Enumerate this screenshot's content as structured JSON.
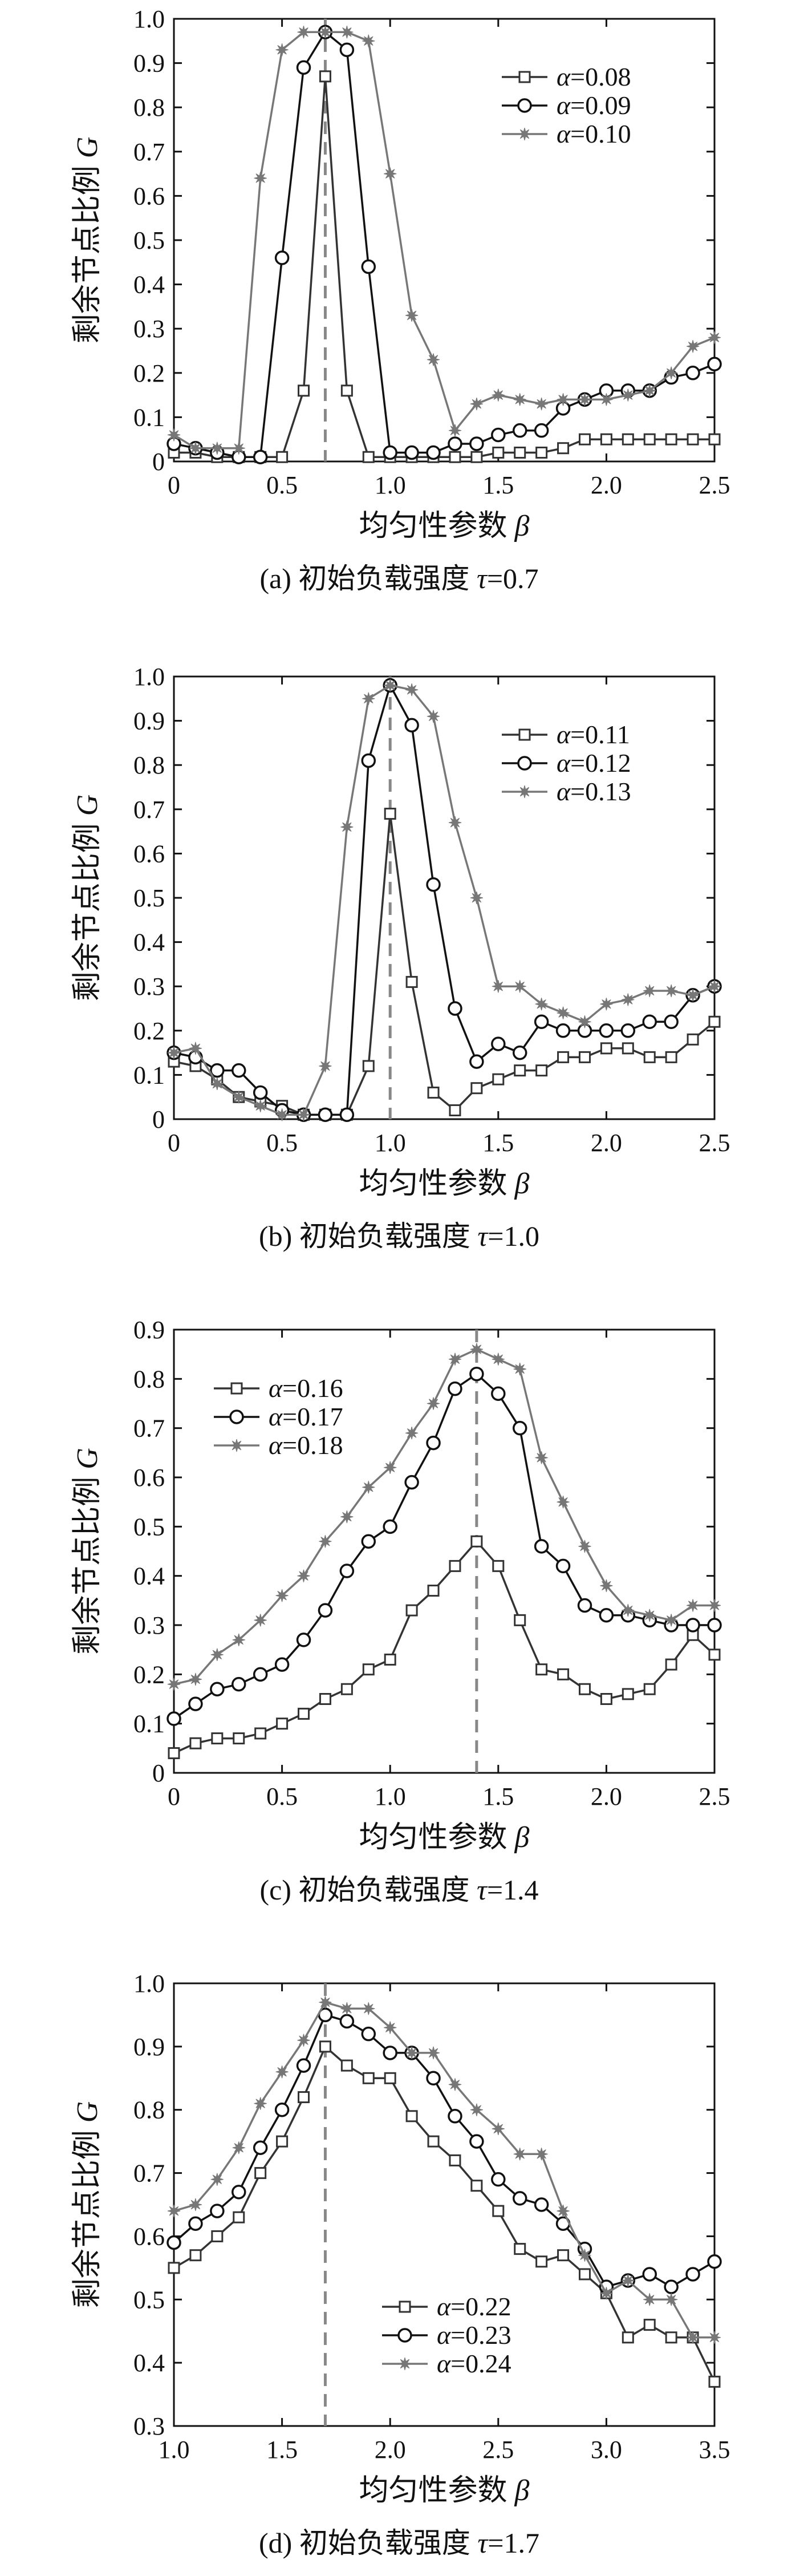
{
  "chart_data": [
    {
      "type": "line",
      "panel": "a",
      "caption": "(a) 初始负载强度 τ=0.7",
      "xlabel": "均匀性参数 β",
      "ylabel": "剩余节点比例 G",
      "xlim": [
        0,
        2.5
      ],
      "ylim": [
        0,
        1.0
      ],
      "xticks": [
        "0",
        "0.5",
        "1.0",
        "1.5",
        "2.0",
        "2.5"
      ],
      "xtick_values": [
        0,
        0.5,
        1.0,
        1.5,
        2.0,
        2.5
      ],
      "yticks": [
        "0",
        "0.1",
        "0.2",
        "0.3",
        "0.4",
        "0.5",
        "0.6",
        "0.7",
        "0.8",
        "0.9",
        "1.0"
      ],
      "ytick_values": [
        0,
        0.1,
        0.2,
        0.3,
        0.4,
        0.5,
        0.6,
        0.7,
        0.8,
        0.9,
        1.0
      ],
      "vline": 0.7,
      "legend_position": "top-right",
      "x": [
        0,
        0.1,
        0.2,
        0.3,
        0.4,
        0.5,
        0.6,
        0.7,
        0.8,
        0.9,
        1.0,
        1.1,
        1.2,
        1.3,
        1.4,
        1.5,
        1.6,
        1.7,
        1.8,
        1.9,
        2.0,
        2.1,
        2.2,
        2.3,
        2.4,
        2.5
      ],
      "series": [
        {
          "name": "α=0.08",
          "marker": "square",
          "color": "#333333",
          "values": [
            0.02,
            0.02,
            0.01,
            0.01,
            0.01,
            0.01,
            0.16,
            0.87,
            0.16,
            0.01,
            0.01,
            0.01,
            0.01,
            0.01,
            0.01,
            0.02,
            0.02,
            0.02,
            0.03,
            0.05,
            0.05,
            0.05,
            0.05,
            0.05,
            0.05,
            0.05
          ]
        },
        {
          "name": "α=0.09",
          "marker": "circle",
          "color": "#111111",
          "values": [
            0.04,
            0.03,
            0.02,
            0.01,
            0.01,
            0.46,
            0.89,
            0.97,
            0.93,
            0.44,
            0.02,
            0.02,
            0.02,
            0.04,
            0.04,
            0.06,
            0.07,
            0.07,
            0.12,
            0.14,
            0.16,
            0.16,
            0.16,
            0.19,
            0.2,
            0.22
          ]
        },
        {
          "name": "α=0.10",
          "marker": "star",
          "color": "#777777",
          "values": [
            0.06,
            0.03,
            0.03,
            0.03,
            0.64,
            0.93,
            0.97,
            0.97,
            0.97,
            0.95,
            0.65,
            0.33,
            0.23,
            0.07,
            0.13,
            0.15,
            0.14,
            0.13,
            0.14,
            0.14,
            0.14,
            0.15,
            0.16,
            0.2,
            0.26,
            0.28
          ]
        }
      ]
    },
    {
      "type": "line",
      "panel": "b",
      "caption": "(b) 初始负载强度 τ=1.0",
      "xlabel": "均匀性参数 β",
      "ylabel": "剩余节点比例 G",
      "xlim": [
        0,
        2.5
      ],
      "ylim": [
        0,
        1.0
      ],
      "xticks": [
        "0",
        "0.5",
        "1.0",
        "1.5",
        "2.0",
        "2.5"
      ],
      "xtick_values": [
        0,
        0.5,
        1.0,
        1.5,
        2.0,
        2.5
      ],
      "yticks": [
        "0",
        "0.1",
        "0.2",
        "0.3",
        "0.4",
        "0.5",
        "0.6",
        "0.7",
        "0.8",
        "0.9",
        "1.0"
      ],
      "ytick_values": [
        0,
        0.1,
        0.2,
        0.3,
        0.4,
        0.5,
        0.6,
        0.7,
        0.8,
        0.9,
        1.0
      ],
      "vline": 1.0,
      "legend_position": "top-right",
      "x": [
        0,
        0.1,
        0.2,
        0.3,
        0.4,
        0.5,
        0.6,
        0.7,
        0.8,
        0.9,
        1.0,
        1.1,
        1.2,
        1.3,
        1.4,
        1.5,
        1.6,
        1.7,
        1.8,
        1.9,
        2.0,
        2.1,
        2.2,
        2.3,
        2.4,
        2.5
      ],
      "series": [
        {
          "name": "α=0.11",
          "marker": "square",
          "color": "#333333",
          "values": [
            0.13,
            0.12,
            0.09,
            0.05,
            0.04,
            0.03,
            0.01,
            0.01,
            0.01,
            0.12,
            0.69,
            0.31,
            0.06,
            0.02,
            0.07,
            0.09,
            0.11,
            0.11,
            0.14,
            0.14,
            0.16,
            0.16,
            0.14,
            0.14,
            0.18,
            0.22
          ]
        },
        {
          "name": "α=0.12",
          "marker": "circle",
          "color": "#111111",
          "values": [
            0.15,
            0.14,
            0.11,
            0.11,
            0.06,
            0.02,
            0.01,
            0.01,
            0.01,
            0.81,
            0.98,
            0.89,
            0.53,
            0.25,
            0.13,
            0.17,
            0.15,
            0.22,
            0.2,
            0.2,
            0.2,
            0.2,
            0.22,
            0.22,
            0.28,
            0.3
          ]
        },
        {
          "name": "α=0.13",
          "marker": "star",
          "color": "#777777",
          "values": [
            0.15,
            0.16,
            0.08,
            0.05,
            0.03,
            0.01,
            0.01,
            0.12,
            0.66,
            0.95,
            0.98,
            0.97,
            0.91,
            0.67,
            0.5,
            0.3,
            0.3,
            0.26,
            0.24,
            0.22,
            0.26,
            0.27,
            0.29,
            0.29,
            0.28,
            0.3
          ]
        }
      ]
    },
    {
      "type": "line",
      "panel": "c",
      "caption": "(c) 初始负载强度 τ=1.4",
      "xlabel": "均匀性参数 β",
      "ylabel": "剩余节点比例 G",
      "xlim": [
        0,
        2.5
      ],
      "ylim": [
        0,
        0.9
      ],
      "xticks": [
        "0",
        "0.5",
        "1.0",
        "1.5",
        "2.0",
        "2.5"
      ],
      "xtick_values": [
        0,
        0.5,
        1.0,
        1.5,
        2.0,
        2.5
      ],
      "yticks": [
        "0",
        "0.1",
        "0.2",
        "0.3",
        "0.4",
        "0.5",
        "0.6",
        "0.7",
        "0.8",
        "0.9"
      ],
      "ytick_values": [
        0,
        0.1,
        0.2,
        0.3,
        0.4,
        0.5,
        0.6,
        0.7,
        0.8,
        0.9
      ],
      "vline": 1.4,
      "legend_position": "top-left",
      "x": [
        0,
        0.1,
        0.2,
        0.3,
        0.4,
        0.5,
        0.6,
        0.7,
        0.8,
        0.9,
        1.0,
        1.1,
        1.2,
        1.3,
        1.4,
        1.5,
        1.6,
        1.7,
        1.8,
        1.9,
        2.0,
        2.1,
        2.2,
        2.3,
        2.4,
        2.5
      ],
      "series": [
        {
          "name": "α=0.16",
          "marker": "square",
          "color": "#333333",
          "values": [
            0.04,
            0.06,
            0.07,
            0.07,
            0.08,
            0.1,
            0.12,
            0.15,
            0.17,
            0.21,
            0.23,
            0.33,
            0.37,
            0.42,
            0.47,
            0.42,
            0.31,
            0.21,
            0.2,
            0.17,
            0.15,
            0.16,
            0.17,
            0.22,
            0.28,
            0.24
          ]
        },
        {
          "name": "α=0.17",
          "marker": "circle",
          "color": "#111111",
          "values": [
            0.11,
            0.14,
            0.17,
            0.18,
            0.2,
            0.22,
            0.27,
            0.33,
            0.41,
            0.47,
            0.5,
            0.59,
            0.67,
            0.78,
            0.81,
            0.77,
            0.7,
            0.46,
            0.42,
            0.34,
            0.32,
            0.32,
            0.31,
            0.3,
            0.3,
            0.3
          ]
        },
        {
          "name": "α=0.18",
          "marker": "star",
          "color": "#777777",
          "values": [
            0.18,
            0.19,
            0.24,
            0.27,
            0.31,
            0.36,
            0.4,
            0.47,
            0.52,
            0.58,
            0.62,
            0.69,
            0.75,
            0.84,
            0.86,
            0.84,
            0.82,
            0.64,
            0.55,
            0.46,
            0.38,
            0.33,
            0.32,
            0.31,
            0.34,
            0.34
          ]
        }
      ]
    },
    {
      "type": "line",
      "panel": "d",
      "caption": "(d) 初始负载强度 τ=1.7",
      "xlabel": "均匀性参数 β",
      "ylabel": "剩余节点比例 G",
      "xlim": [
        1.0,
        3.5
      ],
      "ylim": [
        0.3,
        1.0
      ],
      "xticks": [
        "1.0",
        "1.5",
        "2.0",
        "2.5",
        "3.0",
        "3.5"
      ],
      "xtick_values": [
        1.0,
        1.5,
        2.0,
        2.5,
        3.0,
        3.5
      ],
      "yticks": [
        "0.3",
        "0.4",
        "0.5",
        "0.6",
        "0.7",
        "0.8",
        "0.9",
        "1.0"
      ],
      "ytick_values": [
        0.3,
        0.4,
        0.5,
        0.6,
        0.7,
        0.8,
        0.9,
        1.0
      ],
      "vline": 1.7,
      "legend_position": "bottom-center",
      "x": [
        1.0,
        1.1,
        1.2,
        1.3,
        1.4,
        1.5,
        1.6,
        1.7,
        1.8,
        1.9,
        2.0,
        2.1,
        2.2,
        2.3,
        2.4,
        2.5,
        2.6,
        2.7,
        2.8,
        2.9,
        3.0,
        3.1,
        3.2,
        3.3,
        3.4,
        3.5
      ],
      "series": [
        {
          "name": "α=0.22",
          "marker": "square",
          "color": "#333333",
          "values": [
            0.55,
            0.57,
            0.6,
            0.63,
            0.7,
            0.75,
            0.82,
            0.9,
            0.87,
            0.85,
            0.85,
            0.79,
            0.75,
            0.72,
            0.68,
            0.64,
            0.58,
            0.56,
            0.57,
            0.54,
            0.51,
            0.44,
            0.46,
            0.44,
            0.44,
            0.37
          ]
        },
        {
          "name": "α=0.23",
          "marker": "circle",
          "color": "#111111",
          "values": [
            0.59,
            0.62,
            0.64,
            0.67,
            0.74,
            0.8,
            0.87,
            0.95,
            0.94,
            0.92,
            0.89,
            0.89,
            0.85,
            0.79,
            0.75,
            0.69,
            0.66,
            0.65,
            0.62,
            0.58,
            0.52,
            0.53,
            0.54,
            0.52,
            0.54,
            0.56
          ]
        },
        {
          "name": "α=0.24",
          "marker": "star",
          "color": "#777777",
          "values": [
            0.64,
            0.65,
            0.69,
            0.74,
            0.81,
            0.86,
            0.91,
            0.97,
            0.96,
            0.96,
            0.93,
            0.89,
            0.89,
            0.84,
            0.8,
            0.77,
            0.73,
            0.73,
            0.64,
            0.57,
            0.51,
            0.53,
            0.5,
            0.5,
            0.44,
            0.44
          ]
        }
      ]
    }
  ]
}
